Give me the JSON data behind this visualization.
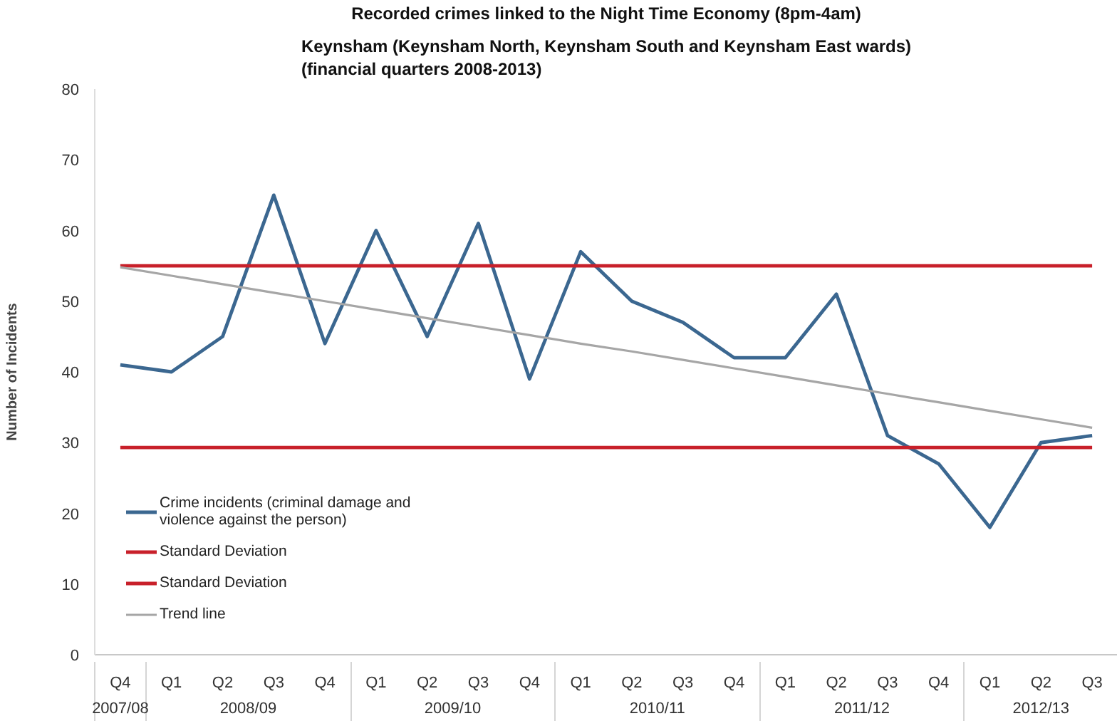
{
  "chart_data": {
    "type": "line",
    "title": "Recorded crimes linked to the Night Time Economy (8pm-4am)",
    "subtitle": "Keynsham (Keynsham North, Keynsham South and Keynsham East wards)\n(financial quarters 2008-2013)",
    "ylabel": "Number of Incidents",
    "categories": [
      "Q4",
      "Q1",
      "Q2",
      "Q3",
      "Q4",
      "Q1",
      "Q2",
      "Q3",
      "Q4",
      "Q1",
      "Q2",
      "Q3",
      "Q4",
      "Q1",
      "Q2",
      "Q3",
      "Q4",
      "Q1",
      "Q2",
      "Q3"
    ],
    "annotations": [
      "2007/08",
      "2008/09",
      "2009/10",
      "2010/11",
      "2011/12",
      "2012/13"
    ],
    "series": [
      {
        "name": "Crime incidents (criminal damage and violence against the person)",
        "color": "#3b6790",
        "values": [
          41,
          40,
          45,
          65,
          44,
          60,
          45,
          61,
          39,
          57,
          50,
          47,
          42,
          42,
          51,
          31,
          27,
          18,
          30,
          31
        ]
      },
      {
        "name": "Standard Deviation",
        "color": "#c8202a",
        "values": [
          55,
          55,
          55,
          55,
          55,
          55,
          55,
          55,
          55,
          55,
          55,
          55,
          55,
          55,
          55,
          55,
          55,
          55,
          55,
          55
        ]
      },
      {
        "name": "Standard Deviation",
        "color": "#c8202a",
        "values": [
          29.3,
          29.3,
          29.3,
          29.3,
          29.3,
          29.3,
          29.3,
          29.3,
          29.3,
          29.3,
          29.3,
          29.3,
          29.3,
          29.3,
          29.3,
          29.3,
          29.3,
          29.3,
          29.3,
          29.3
        ]
      },
      {
        "name": "Trend line",
        "color": "#a6a6a6",
        "values": [
          54.8,
          53.6,
          52.4,
          51.2,
          50.0,
          48.8,
          47.6,
          46.4,
          45.2,
          44.0,
          42.9,
          41.7,
          40.5,
          39.3,
          38.1,
          36.9,
          35.7,
          34.5,
          33.3,
          32.1
        ]
      }
    ],
    "ylim": [
      0,
      80
    ],
    "yticks": [
      0,
      10,
      20,
      30,
      40,
      50,
      60,
      70,
      80
    ],
    "legend": "bottom left"
  }
}
